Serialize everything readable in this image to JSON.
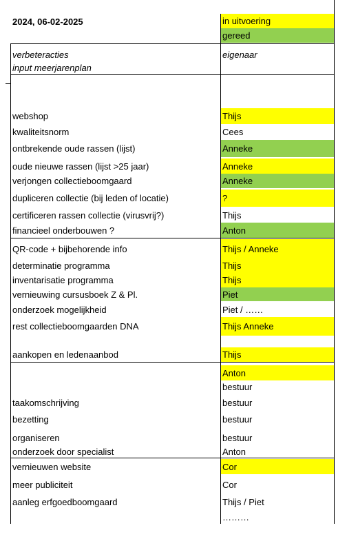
{
  "header": {
    "title": "2024, 06-02-2025",
    "legend": [
      {
        "label": "in uitvoering",
        "color": "#ffff00"
      },
      {
        "label": "gereed",
        "color": "#92d050"
      }
    ]
  },
  "table": {
    "column_header": {
      "action_lines": [
        "verbeteracties",
        "input meerjarenplan"
      ],
      "owner": "eigenaar"
    },
    "rows": [
      {
        "action": "webshop",
        "owner": "Thijs",
        "color": "#ffff00"
      },
      {
        "action": "kwaliteitsnorm",
        "owner": "Cees"
      },
      {
        "action": "ontbrekende oude rassen (lijst)",
        "owner": "Anneke",
        "color": "#92d050"
      },
      {
        "action": "oude nieuwe rassen (lijst >25 jaar)",
        "owner": "Anneke",
        "color": "#ffff00"
      },
      {
        "action": "verjongen collectieboomgaard",
        "owner": "Anneke",
        "color": "#92d050"
      },
      {
        "action": "dupliceren collectie (bij leden of locatie)",
        "owner": "?",
        "color": "#ffff00"
      },
      {
        "action": "certificeren rassen collectie (virusvrij?)",
        "owner": "Thijs"
      },
      {
        "action": "financieel onderbouwen ?",
        "owner": "Anton",
        "color": "#92d050"
      },
      {
        "action": "QR-code + bijbehorende info",
        "owner": "Thijs / Anneke",
        "color": "#ffff00"
      },
      {
        "action": "determinatie programma",
        "owner": "Thijs",
        "color": "#ffff00"
      },
      {
        "action": "inventarisatie programma",
        "owner": "Thijs",
        "color": "#ffff00"
      },
      {
        "action": "vernieuwing cursusboek Z & Pl.",
        "owner": "Piet",
        "color": "#92d050"
      },
      {
        "action": "onderzoek mogelijkheid",
        "owner": "Piet / ……"
      },
      {
        "action": "rest collectieboomgaarden DNA",
        "owner": "Thijs Anneke",
        "color": "#ffff00"
      },
      {
        "action": "aankopen en ledenaanbod",
        "owner": "Thijs",
        "color": "#ffff00"
      },
      {
        "owner": "Anton",
        "color": "#ffff00"
      },
      {
        "owner": "bestuur"
      },
      {
        "action": "taakomschrijving",
        "owner": "bestuur"
      },
      {
        "action": "bezetting",
        "owner": "bestuur"
      },
      {
        "action": "organiseren",
        "owner": "bestuur"
      },
      {
        "action": "onderzoek door specialist",
        "owner": "Anton"
      },
      {
        "action": "vernieuwen website",
        "owner": "Cor",
        "color": "#ffff00"
      },
      {
        "action": "meer publiciteit",
        "owner": "Cor"
      },
      {
        "action": "aanleg erfgoedboomgaard",
        "owner": "Thijs / Piet"
      },
      {
        "owner": "………"
      }
    ]
  }
}
